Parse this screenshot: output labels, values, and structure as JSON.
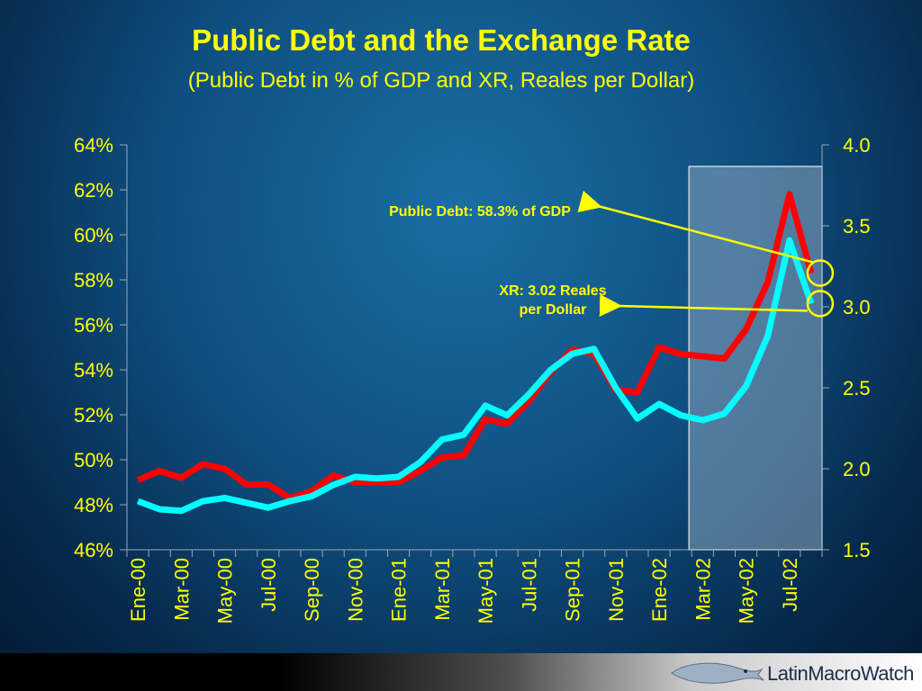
{
  "chart_data": {
    "type": "line",
    "title": "Public Debt and the Exchange Rate",
    "subtitle": "(Public Debt in % of GDP and XR, Reales per Dollar)",
    "categories": [
      "Ene-00",
      "Feb-00",
      "Mar-00",
      "Apr-00",
      "May-00",
      "Jun-00",
      "Jul-00",
      "Aug-00",
      "Sep-00",
      "Oct-00",
      "Nov-00",
      "Dec-00",
      "Ene-01",
      "Feb-01",
      "Mar-01",
      "Apr-01",
      "May-01",
      "Jun-01",
      "Jul-01",
      "Aug-01",
      "Sep-01",
      "Oct-01",
      "Nov-01",
      "Dec-01",
      "Ene-02",
      "Feb-02",
      "Mar-02",
      "Apr-02",
      "May-02",
      "Jun-02",
      "Jul-02",
      "Aug-02"
    ],
    "x_tick_labels": [
      "Ene-00",
      "Mar-00",
      "May-00",
      "Jul-00",
      "Sep-00",
      "Nov-00",
      "Ene-01",
      "Mar-01",
      "May-01",
      "Jul-01",
      "Sep-01",
      "Nov-01",
      "Ene-02",
      "Mar-02",
      "May-02",
      "Jul-02"
    ],
    "y_left": {
      "ylim": [
        46,
        64
      ],
      "ticks": [
        "64%",
        "62%",
        "60%",
        "58%",
        "56%",
        "54%",
        "52%",
        "50%",
        "48%",
        "46%"
      ],
      "tick_values": [
        64,
        62,
        60,
        58,
        56,
        54,
        52,
        50,
        48,
        46
      ]
    },
    "y_right": {
      "ylim": [
        1.5,
        4.0
      ],
      "ticks": [
        "4.0",
        "3.5",
        "3.0",
        "2.5",
        "2.0",
        "1.5"
      ],
      "tick_values": [
        4.0,
        3.5,
        3.0,
        2.5,
        2.0,
        1.5
      ]
    },
    "series": [
      {
        "color": "#ff0000",
        "axis": "left",
        "values": [
          49.1,
          49.5,
          49.2,
          49.8,
          49.6,
          48.9,
          48.9,
          48.3,
          48.6,
          49.3,
          49.0,
          49.0,
          49.0,
          49.5,
          50.1,
          50.2,
          51.8,
          51.6,
          52.6,
          53.9,
          54.9,
          54.7,
          53.1,
          53.0,
          55.0,
          54.7,
          54.6,
          54.5,
          55.8,
          57.9,
          61.8,
          58.3
        ]
      },
      {
        "color": "#00ffff",
        "axis": "right",
        "values": [
          1.8,
          1.75,
          1.74,
          1.8,
          1.82,
          1.79,
          1.76,
          1.8,
          1.83,
          1.9,
          1.95,
          1.94,
          1.95,
          2.04,
          2.18,
          2.21,
          2.39,
          2.33,
          2.46,
          2.61,
          2.71,
          2.74,
          2.5,
          2.31,
          2.4,
          2.33,
          2.3,
          2.34,
          2.51,
          2.82,
          3.41,
          3.02
        ]
      }
    ],
    "highlight_region": {
      "from_category": "Mar-02",
      "to_category": "end"
    },
    "annotations": [
      {
        "line1": "Public Debt: 58.3% of GDP",
        "line2": ""
      },
      {
        "line1": "XR: 3.02 Reales",
        "line2": "per Dollar"
      }
    ],
    "grid": false,
    "legend": "none"
  },
  "branding": {
    "logo_text": "LatinMacroWatch"
  },
  "colors": {
    "text": "#ffff00",
    "debt": "#ff0000",
    "xr": "#00ffff",
    "axis": "#9aa7b5"
  }
}
